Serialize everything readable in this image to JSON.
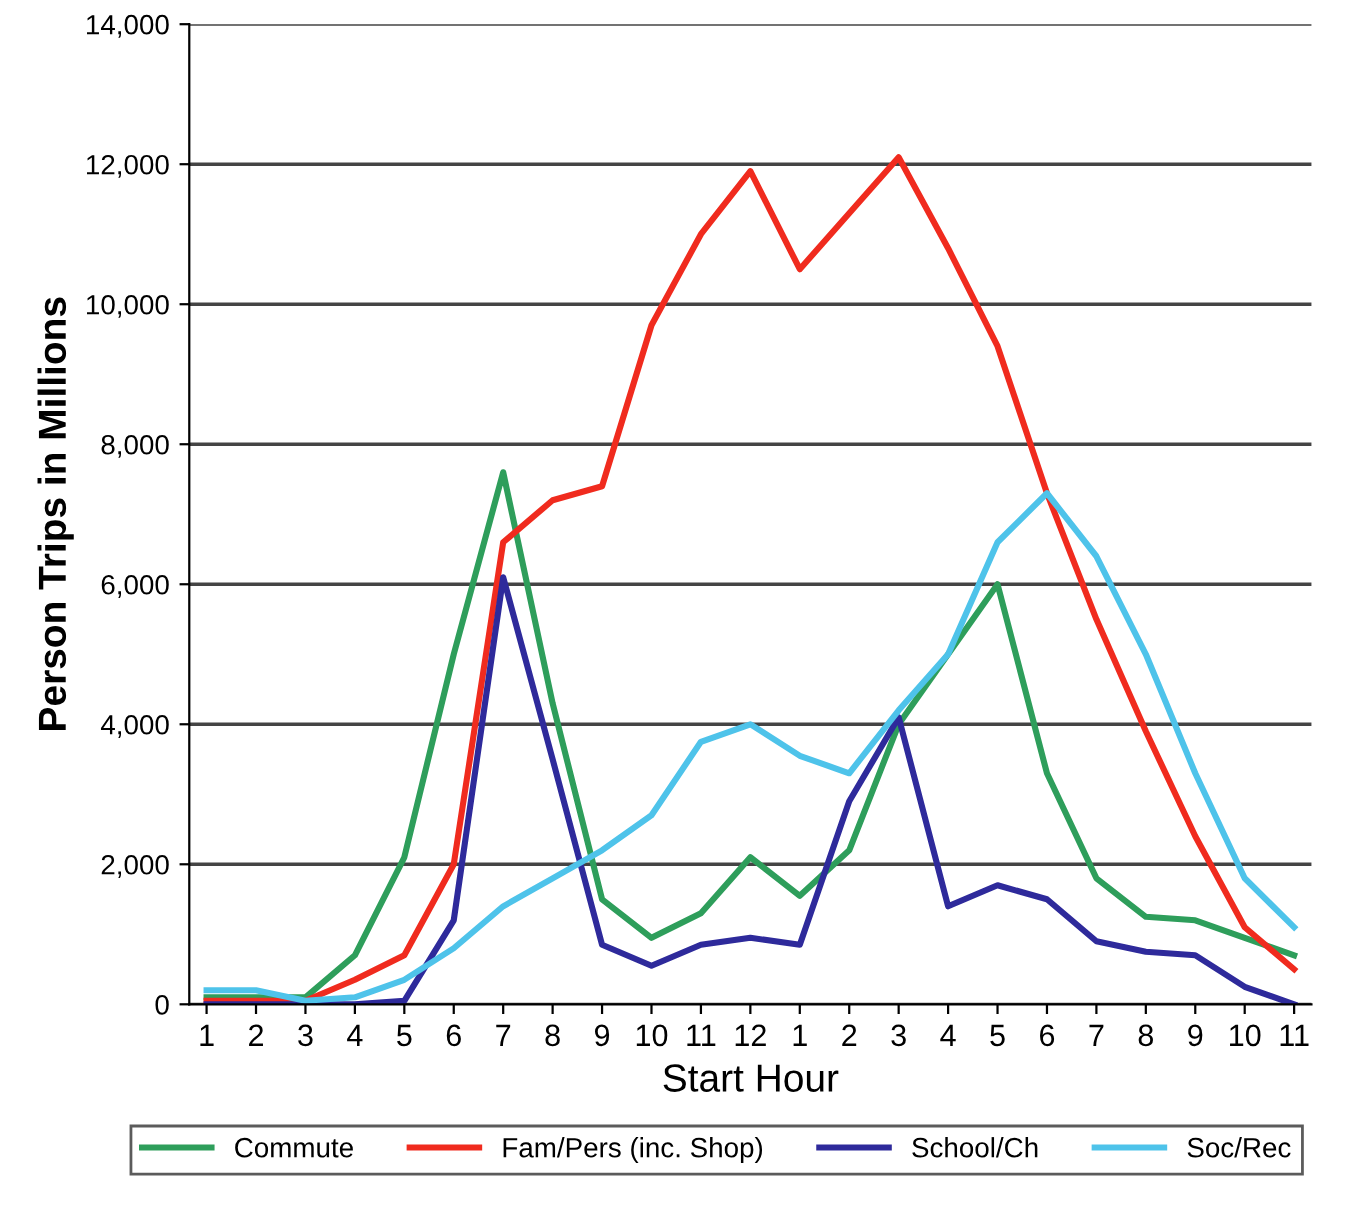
{
  "chart_data": {
    "type": "line",
    "xlabel": "Start Hour",
    "ylabel": "Person Trips in Millions",
    "categories": [
      "1",
      "2",
      "3",
      "4",
      "5",
      "6",
      "7",
      "8",
      "9",
      "10",
      "11",
      "12",
      "1",
      "2",
      "3",
      "4",
      "5",
      "6",
      "7",
      "8",
      "9",
      "10",
      "11"
    ],
    "series": [
      {
        "name": "Commute",
        "color": "#2e9e5b",
        "values": [
          100,
          100,
          100,
          700,
          2100,
          5000,
          7600,
          4300,
          1500,
          950,
          1300,
          2100,
          1550,
          2200,
          4000,
          5000,
          6000,
          3300,
          1800,
          1250,
          1200,
          950,
          700
        ]
      },
      {
        "name": "Fam/Pers (inc. Shop)",
        "color": "#f02b1e",
        "values": [
          50,
          50,
          50,
          350,
          700,
          2000,
          6600,
          7200,
          7400,
          9700,
          11000,
          11900,
          10500,
          11300,
          12100,
          10800,
          9400,
          7300,
          5500,
          3900,
          2400,
          1100,
          500
        ]
      },
      {
        "name": "School/Ch",
        "color": "#2e2a9b",
        "values": [
          0,
          0,
          0,
          0,
          50,
          1200,
          6100,
          3500,
          850,
          550,
          850,
          950,
          850,
          2900,
          4100,
          1400,
          1700,
          1500,
          900,
          750,
          700,
          250,
          0
        ]
      },
      {
        "name": "Soc/Rec",
        "color": "#4ec3ea",
        "values": [
          200,
          200,
          50,
          100,
          350,
          800,
          1400,
          1800,
          2200,
          2700,
          3750,
          4000,
          3550,
          3300,
          4200,
          5000,
          6600,
          7300,
          6400,
          5000,
          3300,
          1800,
          1100
        ]
      }
    ],
    "ylim": [
      0,
      14000
    ],
    "yticks": [
      {
        "value": 0,
        "label": "0"
      },
      {
        "value": 2000,
        "label": "2,000"
      },
      {
        "value": 4000,
        "label": "4,000"
      },
      {
        "value": 6000,
        "label": "6,000"
      },
      {
        "value": 8000,
        "label": "8,000"
      },
      {
        "value": 10000,
        "label": "10,000"
      },
      {
        "value": 12000,
        "label": "12,000"
      },
      {
        "value": 14000,
        "label": "14,000"
      }
    ],
    "grid": "y",
    "legend": "bottom",
    "marker": "none",
    "line_style": "solid"
  }
}
